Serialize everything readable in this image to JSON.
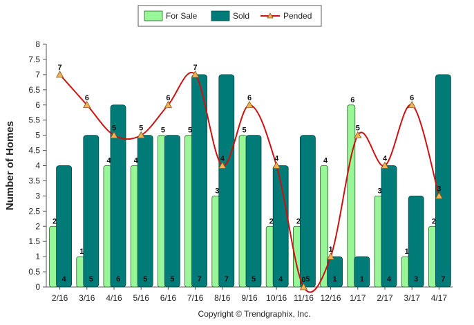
{
  "chart_data": {
    "type": "bar",
    "categories": [
      "2/16",
      "3/16",
      "4/16",
      "5/16",
      "6/16",
      "7/16",
      "8/16",
      "9/16",
      "10/16",
      "11/16",
      "12/16",
      "1/17",
      "2/17",
      "3/17",
      "4/17"
    ],
    "series": [
      {
        "name": "For Sale",
        "type": "bar",
        "color": "#98f598",
        "values": [
          2,
          1,
          4,
          4,
          5,
          5,
          3,
          5,
          2,
          2,
          4,
          6,
          3,
          1,
          2
        ]
      },
      {
        "name": "Sold",
        "type": "bar",
        "color": "#007b78",
        "values": [
          4,
          5,
          6,
          5,
          5,
          7,
          7,
          5,
          4,
          5,
          1,
          1,
          4,
          3,
          7
        ]
      },
      {
        "name": "Pended",
        "type": "line",
        "color": "#cc1111",
        "values": [
          7,
          6,
          5,
          5,
          6,
          7,
          4,
          6,
          4,
          0,
          1,
          5,
          4,
          6,
          3
        ]
      }
    ],
    "ylabel": "Number of Homes",
    "xlabel": "",
    "ylim": [
      0,
      8
    ],
    "ytick_step": 0.5,
    "grid": false,
    "legend_position": "top-center",
    "footer": "Copyright © Trendgraphix, Inc."
  }
}
